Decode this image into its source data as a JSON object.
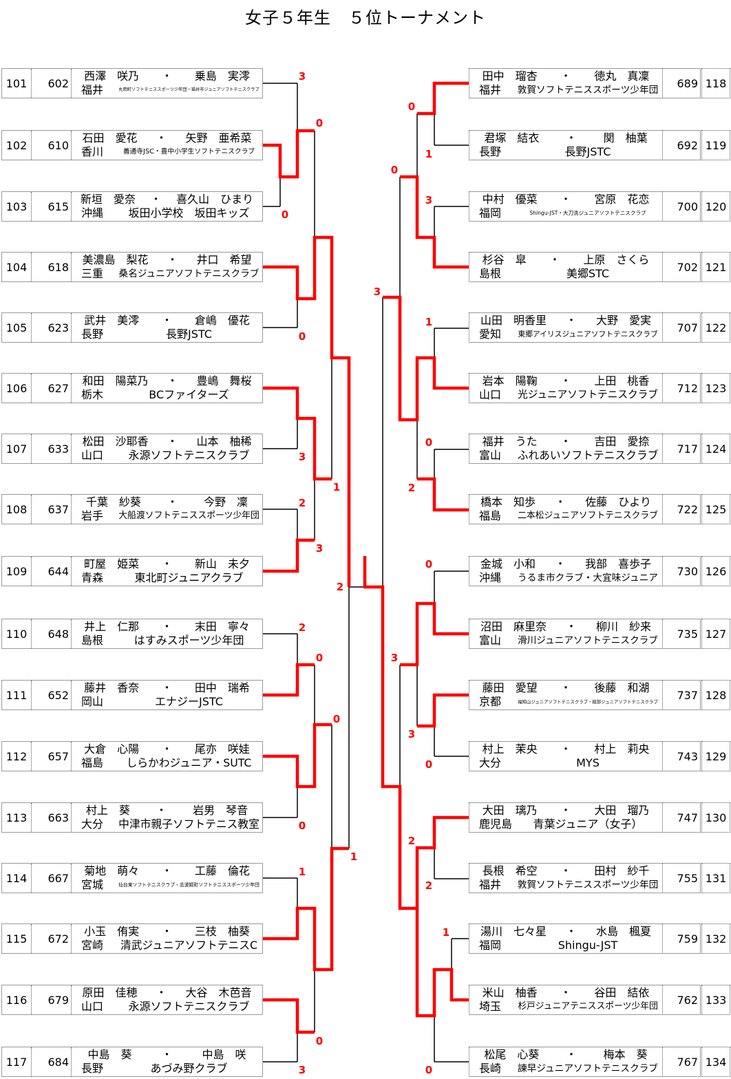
{
  "title": "女子５年生　５位トーナメント",
  "colors": {
    "winner_line": "#ff0000",
    "line": "#000000",
    "score": "#ff0000"
  },
  "left_entries": [
    {
      "seed": "101",
      "num": "602",
      "name1": "西澤　咲乃",
      "name2": "乗島　実澪",
      "pref": "福井",
      "club": "丸岡町ソフトテニススポーツ少年団・福井市ジュニアソフトテニスクラブ"
    },
    {
      "seed": "102",
      "num": "610",
      "name1": "石田　愛花",
      "name2": "矢野　亜希菜",
      "pref": "香川",
      "club": "善通寺JSC・豊中小学生ソフトテニスクラブ"
    },
    {
      "seed": "103",
      "num": "615",
      "name1": "新垣　愛奈",
      "name2": "喜久山　ひまり",
      "pref": "沖縄",
      "club": "坂田小学校　坂田キッズ"
    },
    {
      "seed": "104",
      "num": "618",
      "name1": "美濃島　梨花",
      "name2": "井口　希望",
      "pref": "三重",
      "club": "桑名ジュニアソフトテニスクラブ"
    },
    {
      "seed": "105",
      "num": "623",
      "name1": "武井　美澪",
      "name2": "倉嶋　優花",
      "pref": "長野",
      "club": "長野JSTC"
    },
    {
      "seed": "106",
      "num": "627",
      "name1": "和田　陽菜乃",
      "name2": "豊嶋　舞桜",
      "pref": "栃木",
      "club": "BCファイターズ"
    },
    {
      "seed": "107",
      "num": "633",
      "name1": "松田　沙耶香",
      "name2": "山本　柚稀",
      "pref": "山口",
      "club": "永源ソフトテニスクラブ"
    },
    {
      "seed": "108",
      "num": "637",
      "name1": "千葉　紗葵",
      "name2": "今野　凜",
      "pref": "岩手",
      "club": "大船渡ソフトテニススポーツ少年団"
    },
    {
      "seed": "109",
      "num": "644",
      "name1": "町屋　姫菜",
      "name2": "新山　未夕",
      "pref": "青森",
      "club": "東北町ジュニアクラブ"
    },
    {
      "seed": "110",
      "num": "648",
      "name1": "井上　仁那",
      "name2": "末田　寧々",
      "pref": "島根",
      "club": "はすみスポーツ少年団"
    },
    {
      "seed": "111",
      "num": "652",
      "name1": "藤井　香奈",
      "name2": "田中　瑞希",
      "pref": "岡山",
      "club": "エナジーJSTC"
    },
    {
      "seed": "112",
      "num": "657",
      "name1": "大倉　心陽",
      "name2": "尾亦　咲娃",
      "pref": "福島",
      "club": "しらかわジュニア・SUTC"
    },
    {
      "seed": "113",
      "num": "663",
      "name1": "村上　葵",
      "name2": "岩男　琴音",
      "pref": "大分",
      "club": "中津市親子ソフトテニス教室"
    },
    {
      "seed": "114",
      "num": "667",
      "name1": "菊地　萌々",
      "name2": "工藤　倫花",
      "pref": "宮城",
      "club": "仙台東ソフトテニスクラブ・志波姫町ソフトテニススポーツ少年団"
    },
    {
      "seed": "115",
      "num": "672",
      "name1": "小玉　侑実",
      "name2": "三枝　柚葵",
      "pref": "宮崎",
      "club": "清武ジュニアソフトテニスC"
    },
    {
      "seed": "116",
      "num": "679",
      "name1": "原田　佳穂",
      "name2": "大谷　木芭音",
      "pref": "山口",
      "club": "永源ソフトテニスクラブ"
    },
    {
      "seed": "117",
      "num": "684",
      "name1": "中島　葵",
      "name2": "中島　咲",
      "pref": "長野",
      "club": "あづみ野クラブ"
    }
  ],
  "right_entries": [
    {
      "seed": "118",
      "num": "689",
      "name1": "田中　瑠杏",
      "name2": "徳丸　真凜",
      "pref": "福井",
      "club": "敦賀ソフトテニススポーツ少年団"
    },
    {
      "seed": "119",
      "num": "692",
      "name1": "君塚　結衣",
      "name2": "関　柚葉",
      "pref": "長野",
      "club": "長野JSTC"
    },
    {
      "seed": "120",
      "num": "700",
      "name1": "中村　優菜",
      "name2": "宮原　花恋",
      "pref": "福岡",
      "club": "Shingu-JST・大刀洗ジュニアソフトテニスクラブ"
    },
    {
      "seed": "121",
      "num": "702",
      "name1": "杉谷　皐",
      "name2": "上原　さくら",
      "pref": "島根",
      "club": "美郷STC"
    },
    {
      "seed": "122",
      "num": "707",
      "name1": "山田　明香里",
      "name2": "大野　愛実",
      "pref": "愛知",
      "club": "東郷アイリスジュニアソフトテニスクラブ"
    },
    {
      "seed": "123",
      "num": "712",
      "name1": "岩本　陽鞠",
      "name2": "上田　桃香",
      "pref": "山口",
      "club": "光ジュニアソフトテニスクラブ"
    },
    {
      "seed": "124",
      "num": "717",
      "name1": "福井　うた",
      "name2": "吉田　愛捺",
      "pref": "富山",
      "club": "ふれあいソフトテニスクラブ"
    },
    {
      "seed": "125",
      "num": "722",
      "name1": "橋本　知歩",
      "name2": "佐藤　ひより",
      "pref": "福島",
      "club": "二本松ジュニアソフトテニスクラブ"
    },
    {
      "seed": "126",
      "num": "730",
      "name1": "金城　小和",
      "name2": "我部　喜歩子",
      "pref": "沖縄",
      "club": "うるま市クラブ・大宜味ジュニア"
    },
    {
      "seed": "127",
      "num": "735",
      "name1": "沼田　麻里奈",
      "name2": "柳川　紗来",
      "pref": "富山",
      "club": "滑川ジュニアソフトテニスクラブ"
    },
    {
      "seed": "128",
      "num": "737",
      "name1": "藤田　愛望",
      "name2": "後藤　和湖",
      "pref": "京都",
      "club": "福知山ジュニアソフトテニスクラブ・綾部ジュニアソフトテニスクラブ"
    },
    {
      "seed": "129",
      "num": "743",
      "name1": "村上　茉央",
      "name2": "村上　莉央",
      "pref": "大分",
      "club": "MYS"
    },
    {
      "seed": "130",
      "num": "747",
      "name1": "大田　璃乃",
      "name2": "大田　瑠乃",
      "pref": "鹿児島",
      "club": "青葉ジュニア（女子）"
    },
    {
      "seed": "131",
      "num": "755",
      "name1": "長根　希空",
      "name2": "田村　紗千",
      "pref": "福井",
      "club": "敦賀ソフトテニススポーツ少年団"
    },
    {
      "seed": "132",
      "num": "759",
      "name1": "湯川　七々星",
      "name2": "水島　楓夏",
      "pref": "福岡",
      "club": "Shingu-JST"
    },
    {
      "seed": "133",
      "num": "762",
      "name1": "米山　柚香",
      "name2": "谷田　結依",
      "pref": "埼玉",
      "club": "杉戸ジュニアテニススポーツ少年団"
    },
    {
      "seed": "134",
      "num": "767",
      "name1": "松尾　心葵",
      "name2": "梅本　葵",
      "pref": "長崎",
      "club": "諫早ジュニアソフトテニスクラブ"
    }
  ],
  "separator": "・",
  "left_scores": [
    "3",
    "0",
    "0",
    "0",
    "3",
    "1",
    "2",
    "3",
    "2",
    "2",
    "0",
    "0",
    "0",
    "1",
    "1",
    "0",
    "3"
  ],
  "right_scores": [
    "0",
    "1",
    "0",
    "3",
    "3",
    "1",
    "0",
    "2",
    "0",
    "3",
    "3",
    "0",
    "2",
    "2",
    "1",
    "0"
  ]
}
